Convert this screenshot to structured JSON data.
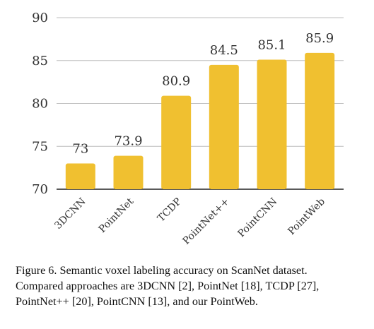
{
  "chart_data": {
    "type": "bar",
    "categories": [
      "3DCNN",
      "PointNet",
      "TCDP",
      "PointNet++",
      "PointCNN",
      "PointWeb"
    ],
    "values": [
      73,
      73.9,
      80.9,
      84.5,
      85.1,
      85.9
    ],
    "value_labels": [
      "73",
      "73.9",
      "80.9",
      "84.5",
      "85.1",
      "85.9"
    ],
    "ylim": [
      70,
      90
    ],
    "yticks": [
      70,
      75,
      80,
      85,
      90
    ],
    "grid": true,
    "bar_color": "#F0C030",
    "grid_color": "#BDBDBD"
  },
  "caption": {
    "lines": [
      "Figure 6. Semantic voxel labeling accuracy on ScanNet dataset.",
      "Compared approaches are 3DCNN [2], PointNet [18], TCDP [27],",
      "PointNet++ [20], PointCNN [13], and our PointWeb."
    ]
  }
}
